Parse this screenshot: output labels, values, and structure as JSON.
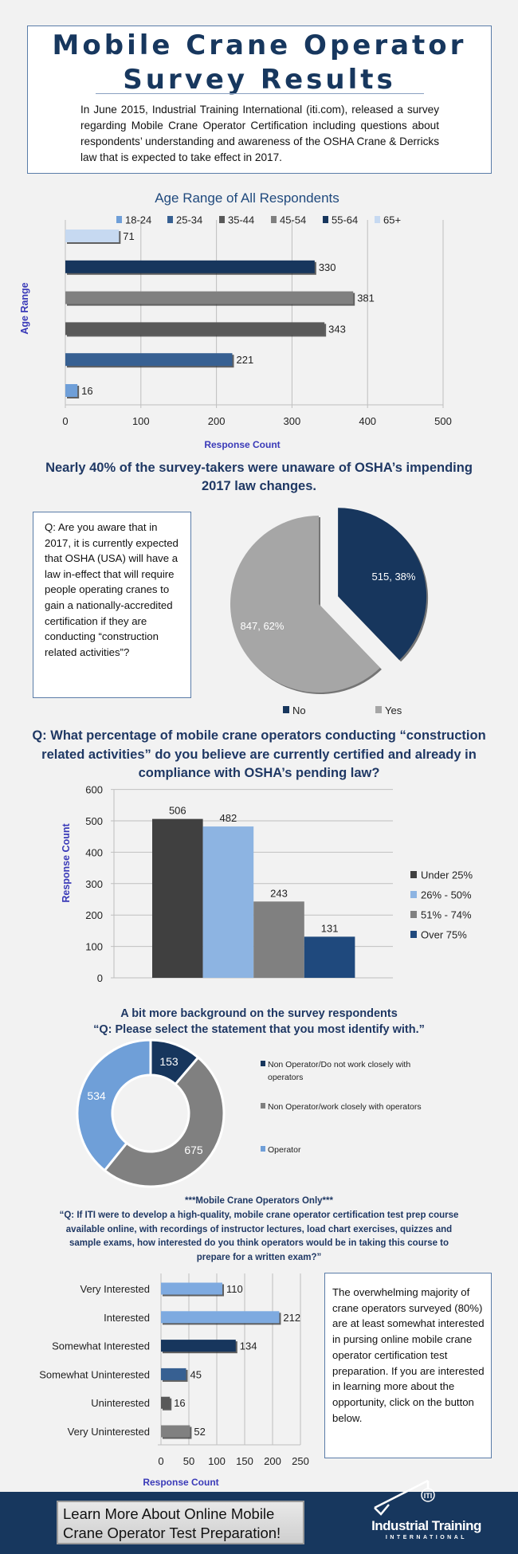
{
  "header": {
    "title_line1": "Mobile Crane Operator",
    "title_line2": "Survey Results",
    "intro": "In June 2015, Industrial Training International (iti.com), released a survey regarding Mobile Crane Operator Certification including questions about respondents’ understanding and awareness of the OSHA Crane & Derricks law that is expected to take effect in 2017."
  },
  "colors": {
    "navy": "#17375e",
    "heading": "#1f3864",
    "axis_title": "#3a3ab8"
  },
  "chart_data": [
    {
      "type": "bar",
      "orientation": "horizontal",
      "title": "Age Range of All Respondents",
      "xlabel": "Response Count",
      "ylabel": "Age Range",
      "categories": [
        "18-24",
        "25-34",
        "35-44",
        "45-54",
        "55-64",
        "65+"
      ],
      "values": [
        16,
        221,
        343,
        381,
        330,
        71
      ],
      "colors": [
        "#6f9fd8",
        "#376092",
        "#595959",
        "#808080",
        "#17365d",
        "#c6d9f1"
      ],
      "xlim": [
        0,
        500
      ],
      "xticks": [
        "0",
        "100",
        "200",
        "300",
        "400",
        "500"
      ],
      "legend": "top",
      "grid": true
    },
    {
      "type": "pie",
      "title": "Nearly 40% of the survey-takers were unaware of OSHA’s impending 2017 law changes.",
      "categories": [
        "No",
        "Yes"
      ],
      "values": [
        515,
        847
      ],
      "percent": [
        38,
        62
      ],
      "labels": [
        "515, 38%",
        "847, 62%"
      ],
      "colors": [
        "#17365d",
        "#a6a6a6"
      ],
      "legend": "bottom"
    },
    {
      "type": "bar",
      "title": "Q: What percentage of mobile crane operators conducting “construction related activities” do you believe are currently certified and already in compliance with OSHA’s pending law?",
      "ylabel": "Response Count",
      "categories": [
        "Under 25%",
        "26% - 50%",
        "51% - 74%",
        "Over 75%"
      ],
      "values": [
        506,
        482,
        243,
        131
      ],
      "colors": [
        "#404040",
        "#8db4e2",
        "#808080",
        "#1f497d"
      ],
      "ylim": [
        0,
        600
      ],
      "yticks": [
        "0",
        "100",
        "200",
        "300",
        "400",
        "500",
        "600"
      ],
      "legend": "right",
      "grid": true
    },
    {
      "type": "pie",
      "variant": "donut",
      "title": "A bit more background on the survey respondents",
      "subtitle": "“Q: Please select the statement that you most identify with.”",
      "categories": [
        "Non Operator/Do not work closely with operators",
        "Non Operator/work closely with operators",
        "Operator"
      ],
      "values": [
        153,
        675,
        534
      ],
      "colors": [
        "#17365d",
        "#808080",
        "#6f9fd8"
      ],
      "legend": "right"
    },
    {
      "type": "bar",
      "orientation": "horizontal",
      "title": "***Mobile Crane Operators Only***",
      "subtitle": "“Q: If ITI were to develop a high-quality, mobile crane operator certification test prep course available online, with recordings of instructor lectures, load chart exercises, quizzes and sample exams, how interested do you think operators would be in taking this course to prepare for a written exam?”",
      "xlabel": "Response Count",
      "categories": [
        "Very Interested",
        "Interested",
        "Somewhat Interested",
        "Somewhat Uninterested",
        "Uninterested",
        "Very Uninterested"
      ],
      "values": [
        110,
        212,
        134,
        45,
        16,
        52
      ],
      "colors": [
        "#7eaae0",
        "#7eaae0",
        "#17365d",
        "#376092",
        "#595959",
        "#808080"
      ],
      "xlim": [
        0,
        250
      ],
      "xticks": [
        "0",
        "50",
        "100",
        "150",
        "200",
        "250"
      ],
      "grid": true
    }
  ],
  "awareness_question": "Q: Are you aware that in 2017, it is currently expected that OSHA (USA) will have a law in-effect that will require people operating cranes to gain a nationally-accredited certification if they are conducting “construction related activities”?",
  "background_heading_line1": "A bit more background  on the survey respondents",
  "interest_heading_line1": "***Mobile Crane Operators Only***",
  "info_box": "The overwhelming majority of crane operators surveyed (80%) are at least somewhat interested in pursing online mobile crane operator certification test preparation. If you are interested in learning more about the opportunity, click on the button below.",
  "footer": {
    "cta": "Learn More About Online Mobile Crane Operator Test Preparation!",
    "logo_badge": "ITI",
    "logo_name": "Industrial Training",
    "logo_sub": "INTERNATIONAL"
  }
}
